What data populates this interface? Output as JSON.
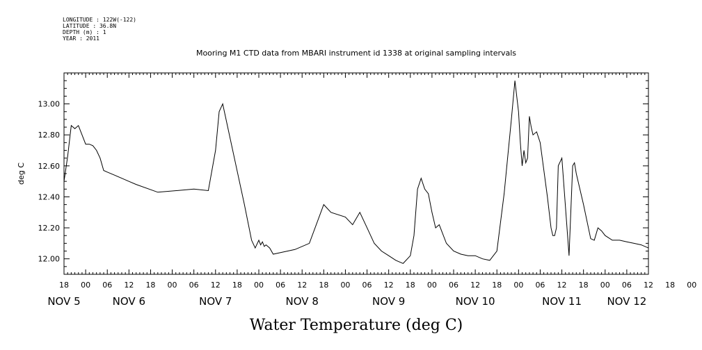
{
  "meta": {
    "longitude": "LONGITUDE : 122W(-122)",
    "latitude": "LATITUDE : 36.8N",
    "depth": "DEPTH (m) : 1",
    "year": "YEAR : 2011"
  },
  "chart_data": {
    "type": "line",
    "title": "Mooring M1 CTD data from MBARI instrument id 1338 at original sampling intervals",
    "xlabel": "Water Temperature (deg C)",
    "ylabel": "deg C",
    "ylim": [
      11.9,
      13.2
    ],
    "y_ticks": [
      "12.00",
      "12.20",
      "12.40",
      "12.60",
      "12.80",
      "13.00"
    ],
    "xlim_hours": [
      -6,
      156
    ],
    "x_hour_ticks": [
      "18",
      "00",
      "06",
      "12",
      "18",
      "00",
      "06",
      "12",
      "18",
      "00",
      "06",
      "12",
      "18",
      "00",
      "06",
      "12",
      "18",
      "00",
      "06",
      "12",
      "18",
      "00",
      "06",
      "12",
      "18",
      "00",
      "06",
      "12",
      "18",
      "00",
      "06",
      "12"
    ],
    "x_day_labels": [
      "NOV  5",
      "NOV  6",
      "NOV  7",
      "NOV  8",
      "NOV  9",
      "NOV 10",
      "NOV 11",
      "NOV 12"
    ],
    "grid": false,
    "series": [
      {
        "x": [
          -6,
          -5,
          -4,
          -3,
          -2,
          -1,
          0,
          1,
          2,
          3,
          4,
          5,
          6,
          8,
          10,
          12,
          14,
          20,
          30,
          34,
          36,
          37,
          38,
          44,
          46,
          47,
          48,
          48.5,
          49,
          49.5,
          50,
          51,
          52,
          54,
          58,
          62,
          66,
          68,
          72,
          74,
          76,
          78,
          80,
          82,
          84,
          86,
          88,
          90,
          91,
          92,
          93,
          94,
          95,
          96,
          97,
          98,
          100,
          102,
          104,
          106,
          108,
          110,
          112,
          114,
          116,
          118,
          119,
          120,
          120.5,
          121,
          121.5,
          122,
          122.5,
          123,
          123.5,
          124,
          125,
          126,
          128,
          129,
          129.5,
          130,
          130.5,
          131,
          132,
          134,
          135,
          135.5,
          136,
          138,
          140,
          141,
          142,
          143,
          144,
          146,
          148,
          150,
          152,
          154,
          156
        ],
        "values": [
          12.5,
          12.66,
          12.86,
          12.84,
          12.86,
          12.8,
          12.74,
          12.74,
          12.73,
          12.7,
          12.65,
          12.57,
          12.56,
          12.54,
          12.52,
          12.5,
          12.48,
          12.43,
          12.45,
          12.44,
          12.7,
          12.95,
          13.0,
          12.35,
          12.12,
          12.07,
          12.12,
          12.09,
          12.11,
          12.08,
          12.09,
          12.07,
          12.03,
          12.04,
          12.06,
          12.1,
          12.35,
          12.3,
          12.27,
          12.22,
          12.3,
          12.2,
          12.1,
          12.05,
          12.02,
          11.99,
          11.97,
          12.02,
          12.15,
          12.45,
          12.52,
          12.45,
          12.42,
          12.3,
          12.2,
          12.22,
          12.1,
          12.05,
          12.03,
          12.02,
          12.02,
          12.0,
          11.99,
          12.05,
          12.42,
          12.9,
          13.15,
          12.95,
          12.75,
          12.6,
          12.7,
          12.62,
          12.65,
          12.92,
          12.85,
          12.8,
          12.82,
          12.75,
          12.4,
          12.2,
          12.15,
          12.15,
          12.2,
          12.6,
          12.65,
          12.02,
          12.6,
          12.62,
          12.55,
          12.35,
          12.13,
          12.12,
          12.2,
          12.18,
          12.15,
          12.12,
          12.12,
          12.11,
          12.1,
          12.09,
          12.07
        ]
      }
    ]
  }
}
